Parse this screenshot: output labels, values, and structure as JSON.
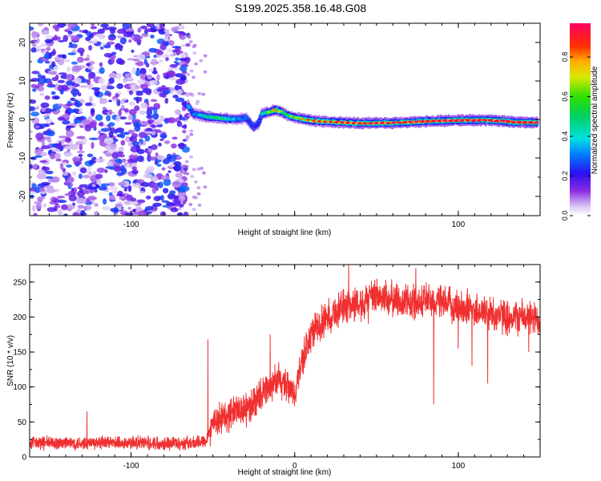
{
  "title": "S199.2025.358.16.48.G08",
  "chart_data": [
    {
      "type": "heatmap",
      "name": "spectrogram",
      "xlabel": "Height of straight line (km)",
      "ylabel": "Frequency (Hz)",
      "xlim": [
        -162,
        150
      ],
      "ylim": [
        -25,
        25
      ],
      "xticks": [
        -100,
        0,
        100
      ],
      "xtick_labels": [
        "-100",
        "",
        "100"
      ],
      "yticks": [
        -20,
        -10,
        0,
        10,
        20
      ],
      "ytick_labels": [
        "-20",
        "-10",
        "0",
        "10",
        "20"
      ],
      "colorbar": {
        "label": "Normalized spectral amplitude",
        "range": [
          0,
          0.97
        ],
        "ticks": [
          0.0,
          0.2,
          0.4,
          0.6,
          0.8
        ],
        "tick_labels": [
          "0.0",
          "0.2",
          "0.4",
          "0.6",
          "0.8"
        ],
        "colormap": "rainbow (white-violet-blue-cyan-green-yellow-red-magenta)"
      },
      "noise_region": {
        "x_range": [
          -162,
          -65
        ],
        "amplitude": [
          0.05,
          0.25
        ]
      },
      "signal_track": {
        "x": [
          -65,
          -62,
          -55,
          -45,
          -35,
          -30,
          -25,
          -22,
          -20,
          -15,
          -12,
          -8,
          -5,
          0,
          10,
          20,
          40,
          60,
          80,
          100,
          120,
          135,
          148
        ],
        "freq": [
          3.5,
          1.5,
          0.8,
          0.3,
          0.0,
          0.5,
          -2.0,
          -1.0,
          1.5,
          2.0,
          2.5,
          2.0,
          1.2,
          0.5,
          -0.3,
          -0.6,
          -1.0,
          -0.9,
          -0.5,
          -0.2,
          -0.2,
          -0.7,
          -0.8
        ],
        "peak_amplitude": [
          0.3,
          0.25,
          0.4,
          0.5,
          0.3,
          0.25,
          0.2,
          0.2,
          0.35,
          0.6,
          0.7,
          0.6,
          0.45,
          0.6,
          0.75,
          0.8,
          0.85,
          0.9,
          0.9,
          0.92,
          0.95,
          0.95,
          0.95
        ]
      }
    },
    {
      "type": "line",
      "name": "snr",
      "xlabel": "Height of straight line (km)",
      "ylabel": "SNR (10 * v/v)",
      "xlim": [
        -162,
        150
      ],
      "ylim": [
        0,
        275
      ],
      "xticks": [
        -100,
        0,
        100
      ],
      "xtick_labels": [
        "-100",
        "0",
        "100"
      ],
      "yticks": [
        0,
        50,
        100,
        150,
        200,
        250
      ],
      "ytick_labels": [
        "0",
        "50",
        "100",
        "150",
        "200",
        "250"
      ],
      "color": "#f03030",
      "series": [
        {
          "name": "SNR baseline",
          "x": [
            -162,
            -140,
            -120,
            -100,
            -80,
            -60,
            -57,
            -54,
            -50,
            -45,
            -40,
            -35,
            -30,
            -25,
            -20,
            -15,
            -10,
            -5,
            0,
            5,
            10,
            20,
            30,
            40,
            50,
            60,
            70,
            80,
            90,
            100,
            110,
            120,
            130,
            140,
            150
          ],
          "values": [
            20,
            20,
            20,
            20,
            20,
            20,
            22,
            25,
            50,
            55,
            60,
            70,
            65,
            80,
            90,
            100,
            110,
            100,
            90,
            140,
            175,
            200,
            215,
            220,
            230,
            225,
            220,
            225,
            220,
            215,
            210,
            205,
            200,
            200,
            195
          ]
        }
      ],
      "spikes": [
        {
          "x": -53,
          "y": 168
        },
        {
          "x": -15,
          "y": 175
        },
        {
          "x": 33,
          "y": 275
        },
        {
          "x": 74,
          "y": 270
        },
        {
          "x": -127,
          "y": 65
        }
      ],
      "dips": [
        {
          "x": 45,
          "y": 190
        },
        {
          "x": 85,
          "y": 75
        },
        {
          "x": 100,
          "y": 155
        },
        {
          "x": 118,
          "y": 105
        },
        {
          "x": 143,
          "y": 150
        }
      ]
    }
  ]
}
